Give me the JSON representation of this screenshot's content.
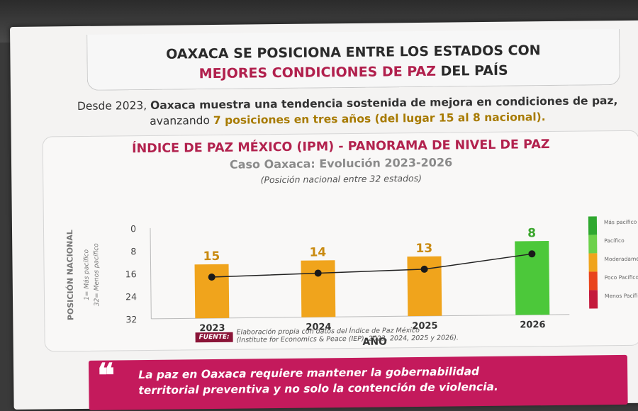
{
  "header": {
    "title_line1": "OAXACA SE POSICIONA ENTRE LOS ESTADOS CON",
    "title_line2_accent": "MEJORES CONDICIONES DE PAZ",
    "title_line2_rest": " DEL PAÍS"
  },
  "intro": {
    "part1": "Desde 2023, ",
    "part2": "Oaxaca muestra una tendencia sostenida de mejora en condiciones de paz,",
    "part3": " avanzando ",
    "part4": "7 posiciones en tres años (del lugar 15 al 8 nacional)."
  },
  "chart_header": {
    "title": "ÍNDICE DE PAZ MÉXICO (IPM) - PANORAMA DE NIVEL DE PAZ",
    "subtitle": "Caso Oaxaca: Evolución 2023-2026",
    "note": "(Posición nacional entre 32 estados)"
  },
  "chart_data": {
    "type": "bar",
    "categories": [
      "2023",
      "2024",
      "2025",
      "2026"
    ],
    "values": [
      15,
      14,
      13,
      8
    ],
    "data_labels": [
      "15",
      "14",
      "13",
      "8"
    ],
    "bar_colors": [
      "#f0a41c",
      "#f0a41c",
      "#f0a41c",
      "#4cc83a"
    ],
    "label_colors": [
      "#c98a10",
      "#c98a10",
      "#c98a10",
      "#3aa62c"
    ],
    "line_values": [
      15,
      14,
      13,
      8
    ],
    "ylim": [
      0,
      32
    ],
    "y_inverted": true,
    "yticks": [
      "0",
      "8",
      "16",
      "24",
      "32"
    ],
    "ylabel": "POSICIÓN NACIONAL",
    "ylabel_sub1": "1= Más pacífico",
    "ylabel_sub2": "32= Menos pacífico",
    "xlabel": "AÑO",
    "legend": [
      {
        "label": "Más pacífico",
        "color": "#2fa82f"
      },
      {
        "label": "Pacífico",
        "color": "#6cd14a"
      },
      {
        "label": "Moderadamente Pacífico",
        "color": "#f0a41c"
      },
      {
        "label": "Poco Pacífico",
        "color": "#e9441c"
      },
      {
        "label": "Menos Pacífico",
        "color": "#c41a3c"
      }
    ]
  },
  "source": {
    "badge": "FUENTE:",
    "line1": "Elaboración propia con datos del Índice de Paz México",
    "line2": "(Institute for Economics & Peace (IEP), 2023, 2024, 2025 y 2026)."
  },
  "quote": {
    "mark": "❝",
    "line1": "La paz en Oaxaca requiere mantener la gobernabilidad",
    "line2": "territorial preventiva y no solo la contención de violencia."
  }
}
